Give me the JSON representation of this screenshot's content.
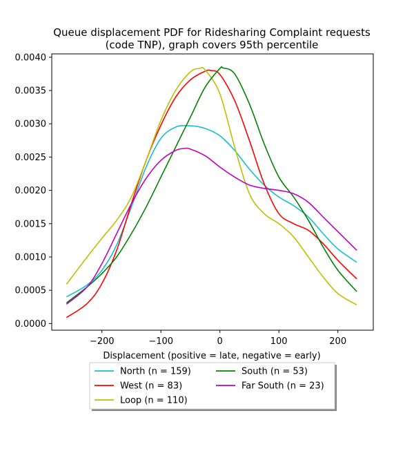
{
  "chart_data": {
    "type": "line",
    "title": "Queue displacement PDF for Ridesharing Complaint  requests",
    "subtitle": "(code TNP), graph covers 95th percentile",
    "xlabel": "Displacement (positive = late, negative = early)",
    "ylabel": "",
    "xlim": [
      -285,
      260
    ],
    "ylim": [
      -0.0001,
      0.00405
    ],
    "xticks": [
      -200,
      -100,
      0,
      100,
      200
    ],
    "xtick_labels": [
      "−200",
      "−100",
      "0",
      "100",
      "200"
    ],
    "yticks": [
      0.0,
      0.0005,
      0.001,
      0.0015,
      0.002,
      0.0025,
      0.003,
      0.0035,
      0.004
    ],
    "ytick_labels": [
      "0.0000",
      "0.0005",
      "0.0010",
      "0.0015",
      "0.0020",
      "0.0025",
      "0.0030",
      "0.0035",
      "0.0040"
    ],
    "grid": false,
    "legend_placement": "below",
    "series": [
      {
        "name": "North (n = 159)",
        "color": "#17becf",
        "x": [
          -260,
          -225,
          -200,
          -175,
          -150,
          -125,
          -100,
          -75,
          -50,
          -25,
          0,
          25,
          50,
          75,
          100,
          125,
          150,
          175,
          200,
          232
        ],
        "y": [
          0.0004,
          0.00058,
          0.0008,
          0.00118,
          0.00175,
          0.00235,
          0.00278,
          0.00295,
          0.00297,
          0.00293,
          0.00282,
          0.0026,
          0.00232,
          0.00208,
          0.0019,
          0.00177,
          0.0016,
          0.00135,
          0.00112,
          0.00092
        ]
      },
      {
        "name": "West (n = 83)",
        "color": "#ff0000",
        "x": [
          -260,
          -225,
          -200,
          -175,
          -150,
          -125,
          -100,
          -75,
          -50,
          -25,
          -15,
          0,
          25,
          50,
          75,
          100,
          125,
          150,
          175,
          200,
          232
        ],
        "y": [
          9e-05,
          0.0003,
          0.0006,
          0.0011,
          0.0018,
          0.00245,
          0.00298,
          0.0034,
          0.00366,
          0.00379,
          0.0038,
          0.00374,
          0.00335,
          0.00275,
          0.0021,
          0.00165,
          0.0015,
          0.0014,
          0.0012,
          0.00095,
          0.00067
        ]
      },
      {
        "name": "Loop (n = 110)",
        "color": "#bfbf00",
        "x": [
          -260,
          -225,
          -200,
          -175,
          -150,
          -125,
          -100,
          -75,
          -50,
          -35,
          -25,
          0,
          25,
          50,
          75,
          100,
          125,
          150,
          175,
          200,
          232
        ],
        "y": [
          0.00059,
          0.001,
          0.00128,
          0.00155,
          0.0019,
          0.00245,
          0.00305,
          0.0035,
          0.00378,
          0.00383,
          0.00381,
          0.00345,
          0.00265,
          0.00195,
          0.00165,
          0.0015,
          0.0013,
          0.001,
          0.0007,
          0.00045,
          0.00028
        ]
      },
      {
        "name": "South (n = 53)",
        "color": "#008000",
        "x": [
          -260,
          -225,
          -200,
          -175,
          -150,
          -125,
          -100,
          -75,
          -50,
          -25,
          0,
          5,
          25,
          50,
          75,
          100,
          125,
          150,
          175,
          200,
          232
        ],
        "y": [
          0.00031,
          0.00055,
          0.00075,
          0.001,
          0.00135,
          0.00175,
          0.0022,
          0.00265,
          0.0031,
          0.00355,
          0.00383,
          0.00384,
          0.00375,
          0.0033,
          0.0027,
          0.0022,
          0.0019,
          0.00155,
          0.00115,
          0.0008,
          0.00048
        ]
      },
      {
        "name": "Far South (n = 23)",
        "color": "#bf00bf",
        "x": [
          -260,
          -225,
          -200,
          -175,
          -150,
          -125,
          -100,
          -75,
          -60,
          -50,
          -25,
          0,
          25,
          50,
          75,
          100,
          125,
          150,
          175,
          200,
          232
        ],
        "y": [
          0.00029,
          0.00055,
          0.0009,
          0.00135,
          0.0018,
          0.00218,
          0.00245,
          0.0026,
          0.00263,
          0.00262,
          0.00252,
          0.00235,
          0.0022,
          0.00208,
          0.00203,
          0.002,
          0.00195,
          0.00182,
          0.0016,
          0.00138,
          0.0011
        ]
      }
    ]
  }
}
